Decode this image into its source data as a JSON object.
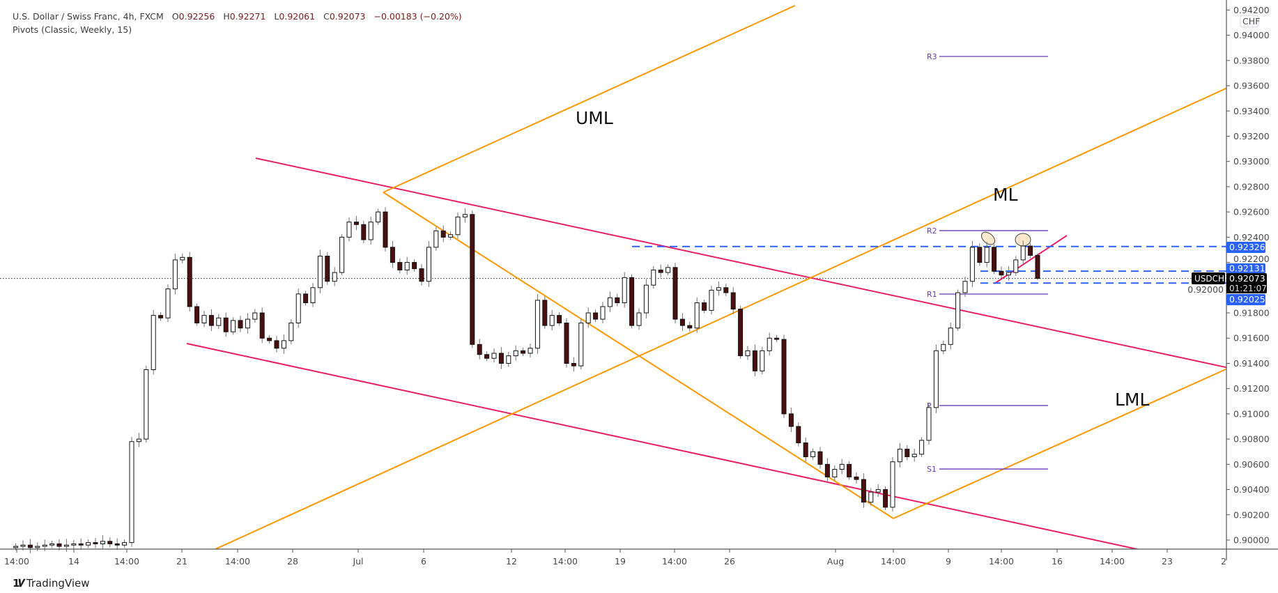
{
  "header": {
    "symbol_title": "U.S. Dollar / Swiss Franc, 4h, FXCM",
    "open_label": "O",
    "open": "0.92256",
    "high_label": "H",
    "high": "0.92271",
    "low_label": "L",
    "low": "0.92061",
    "close_label": "C",
    "close": "0.92073",
    "change": "−0.00183 (−0.20%)",
    "indicator": "Pivots (Classic, Weekly, 15)"
  },
  "colors": {
    "up_body": "#ffffff",
    "down_body": "#4a0f0f",
    "wick": "#707070",
    "pitchfork": "#ff9800",
    "channel": "#e91e63",
    "levels": "#2962ff",
    "pivots": "#673ab7",
    "highlight": "#fde9cc"
  },
  "price_axis": {
    "currency_badge": "CHF",
    "ticks": [
      "0.94200",
      "0.94000",
      "0.93800",
      "0.93600",
      "0.93400",
      "0.93200",
      "0.93000",
      "0.92800",
      "0.92600",
      "0.92400",
      "0.92200",
      "0.92000",
      "0.91800",
      "0.91600",
      "0.91400",
      "0.91200",
      "0.91000",
      "0.90800",
      "0.90600",
      "0.90400",
      "0.90200",
      "0.90000"
    ],
    "level_labels": [
      "0.92326",
      "0.92131",
      "0.92025"
    ],
    "symbol_label": "USDCHF",
    "last_price": "0.92073",
    "countdown": "01:21:07"
  },
  "time_axis": {
    "ticks": [
      "14:00",
      "14",
      "14:00",
      "21",
      "14:00",
      "28",
      "Jul",
      "6",
      "12",
      "14:00",
      "19",
      "14:00",
      "26",
      "Aug",
      "14:00",
      "9",
      "14:00",
      "16",
      "14:00",
      "23",
      "2"
    ]
  },
  "annotations": {
    "uml": "UML",
    "ml": "ML",
    "lml": "LML"
  },
  "pivots": [
    {
      "label": "R3",
      "value": 0.93832
    },
    {
      "label": "R2",
      "value": 0.92452
    },
    {
      "label": "R1",
      "value": 0.91949
    },
    {
      "label": "P",
      "value": 0.91066
    },
    {
      "label": "S1",
      "value": 0.90563
    }
  ],
  "chart_data": {
    "type": "candlestick",
    "title": "U.S. Dollar / Swiss Franc, 4h, FXCM",
    "ylim": [
      0.8993,
      0.9424
    ],
    "grid": false,
    "closes": [
      0.8995,
      0.8996,
      0.8994,
      0.8995,
      0.8996,
      0.8997,
      0.8995,
      0.8996,
      0.8997,
      0.8996,
      0.8998,
      0.8997,
      0.8999,
      0.8997,
      0.8996,
      0.8998,
      0.9078,
      0.908,
      0.9135,
      0.9178,
      0.9176,
      0.9199,
      0.9222,
      0.9224,
      0.9185,
      0.9172,
      0.9178,
      0.917,
      0.9176,
      0.9165,
      0.9174,
      0.9168,
      0.9175,
      0.918,
      0.916,
      0.9158,
      0.9152,
      0.9158,
      0.9172,
      0.9195,
      0.9188,
      0.92,
      0.9225,
      0.9205,
      0.9212,
      0.924,
      0.9252,
      0.925,
      0.9238,
      0.9252,
      0.926,
      0.9232,
      0.922,
      0.9214,
      0.922,
      0.9215,
      0.9205,
      0.9232,
      0.9245,
      0.924,
      0.9242,
      0.9256,
      0.9258,
      0.9155,
      0.9147,
      0.9144,
      0.9148,
      0.914,
      0.9146,
      0.915,
      0.9148,
      0.9152,
      0.919,
      0.917,
      0.9178,
      0.9172,
      0.914,
      0.9138,
      0.9172,
      0.918,
      0.9175,
      0.9185,
      0.9192,
      0.9188,
      0.9208,
      0.917,
      0.918,
      0.9202,
      0.9214,
      0.9212,
      0.9216,
      0.9175,
      0.917,
      0.9168,
      0.9188,
      0.9182,
      0.9198,
      0.92,
      0.9196,
      0.9183,
      0.9146,
      0.915,
      0.9134,
      0.915,
      0.916,
      0.9159,
      0.91,
      0.909,
      0.9077,
      0.9066,
      0.907,
      0.906,
      0.905,
      0.9056,
      0.906,
      0.905,
      0.9048,
      0.903,
      0.9038,
      0.904,
      0.9026,
      0.9062,
      0.9072,
      0.9066,
      0.9068,
      0.9079,
      0.9105,
      0.915,
      0.9155,
      0.9168,
      0.9196,
      0.9205,
      0.9232,
      0.922,
      0.9232,
      0.9213,
      0.921,
      0.9212,
      0.9222,
      0.9233,
      0.92256,
      0.92073
    ],
    "last_candle": {
      "open": 0.92256,
      "high": 0.92271,
      "low": 0.92061,
      "close": 0.92073
    },
    "horizontal_levels": [
      0.92326,
      0.92131,
      0.92025
    ]
  }
}
